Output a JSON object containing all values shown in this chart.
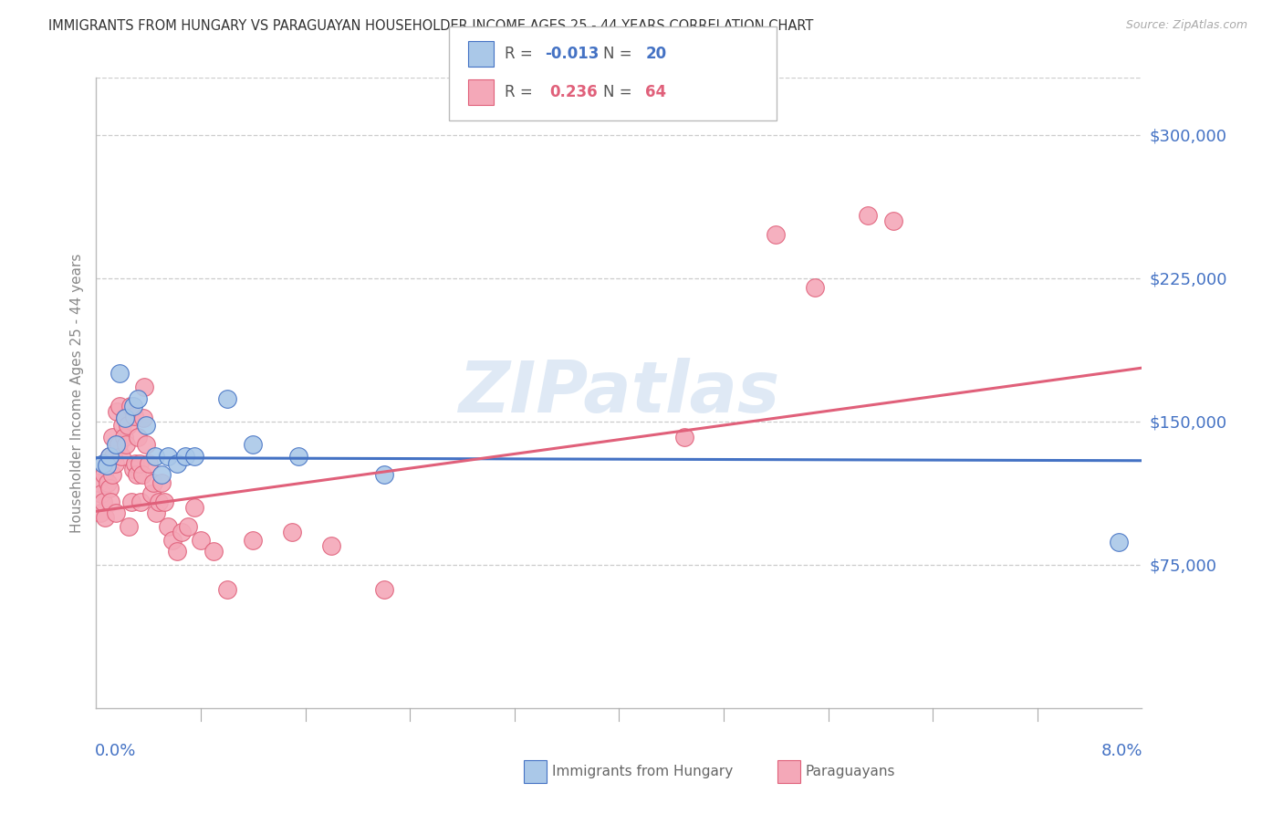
{
  "title": "IMMIGRANTS FROM HUNGARY VS PARAGUAYAN HOUSEHOLDER INCOME AGES 25 - 44 YEARS CORRELATION CHART",
  "source": "Source: ZipAtlas.com",
  "ylabel": "Householder Income Ages 25 - 44 years",
  "xmin": 0.0,
  "xmax": 8.0,
  "ymin": 0,
  "ymax": 330000,
  "yticks": [
    75000,
    150000,
    225000,
    300000
  ],
  "ytick_labels": [
    "$75,000",
    "$150,000",
    "$225,000",
    "$300,000"
  ],
  "legend_r_hungary": "-0.013",
  "legend_n_hungary": "20",
  "legend_r_paraguay": "0.236",
  "legend_n_paraguay": "64",
  "hungary_color": "#aac8e8",
  "hungary_line_color": "#4472c4",
  "paraguay_color": "#f4a8b8",
  "paraguay_line_color": "#e0607a",
  "watermark": "ZIPatlas",
  "hungary_trendline_y0": 131000,
  "hungary_trendline_y1": 129500,
  "paraguay_trendline_y0": 103000,
  "paraguay_trendline_y1": 178000,
  "hungary_x": [
    0.05,
    0.08,
    0.1,
    0.15,
    0.18,
    0.22,
    0.28,
    0.32,
    0.38,
    0.45,
    0.5,
    0.55,
    0.62,
    0.68,
    0.75,
    1.0,
    1.2,
    1.55,
    2.2,
    7.82
  ],
  "hungary_y": [
    128000,
    127000,
    132000,
    138000,
    175000,
    152000,
    158000,
    162000,
    148000,
    132000,
    122000,
    132000,
    128000,
    132000,
    132000,
    162000,
    138000,
    132000,
    122000,
    87000
  ],
  "paraguay_x": [
    0.02,
    0.03,
    0.04,
    0.05,
    0.06,
    0.07,
    0.08,
    0.09,
    0.1,
    0.1,
    0.11,
    0.12,
    0.12,
    0.13,
    0.14,
    0.15,
    0.16,
    0.17,
    0.18,
    0.19,
    0.2,
    0.21,
    0.22,
    0.23,
    0.24,
    0.25,
    0.26,
    0.27,
    0.28,
    0.29,
    0.3,
    0.31,
    0.32,
    0.33,
    0.34,
    0.35,
    0.36,
    0.37,
    0.38,
    0.4,
    0.42,
    0.44,
    0.46,
    0.48,
    0.5,
    0.52,
    0.55,
    0.58,
    0.62,
    0.65,
    0.7,
    0.75,
    0.8,
    0.9,
    1.0,
    1.2,
    1.5,
    1.8,
    2.2,
    4.5,
    5.2,
    5.5,
    5.9,
    6.1
  ],
  "paraguay_y": [
    118000,
    102000,
    112000,
    108000,
    122000,
    100000,
    128000,
    118000,
    115000,
    132000,
    108000,
    142000,
    122000,
    132000,
    128000,
    102000,
    155000,
    138000,
    158000,
    132000,
    148000,
    142000,
    152000,
    138000,
    148000,
    95000,
    158000,
    108000,
    125000,
    153000,
    128000,
    122000,
    142000,
    128000,
    108000,
    122000,
    152000,
    168000,
    138000,
    128000,
    112000,
    118000,
    102000,
    108000,
    118000,
    108000,
    95000,
    88000,
    82000,
    92000,
    95000,
    105000,
    88000,
    82000,
    62000,
    88000,
    92000,
    85000,
    62000,
    142000,
    248000,
    220000,
    258000,
    255000
  ]
}
